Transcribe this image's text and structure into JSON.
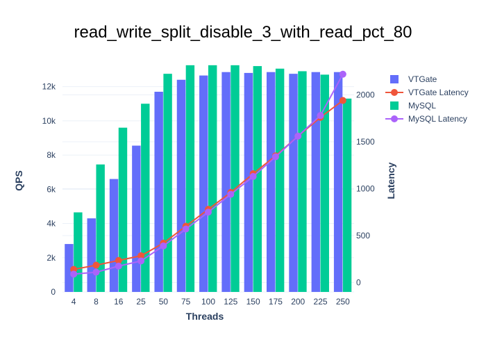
{
  "chart_data": {
    "type": "bar",
    "title": "read_write_split_disable_3_with_read_pct_80",
    "xlabel": "Threads",
    "ylabel": "QPS",
    "y2label": "Latency",
    "categories": [
      "4",
      "8",
      "16",
      "25",
      "50",
      "75",
      "100",
      "125",
      "150",
      "175",
      "200",
      "225",
      "250"
    ],
    "ylim": [
      0,
      13000
    ],
    "y_ticks": [
      0,
      2000,
      4000,
      6000,
      8000,
      10000,
      12000
    ],
    "y_tick_labels": [
      "0",
      "2k",
      "4k",
      "6k",
      "8k",
      "10k",
      "12k"
    ],
    "y2lim": [
      -100,
      2270
    ],
    "y2_ticks": [
      0,
      500,
      1000,
      1500,
      2000
    ],
    "y2_tick_labels": [
      "0",
      "500",
      "1000",
      "1500",
      "2000"
    ],
    "grid": true,
    "legend_position": "top-right",
    "series": [
      {
        "name": "VTGate",
        "kind": "bar",
        "axis": "y",
        "color": "#636efa",
        "values": [
          2800,
          4300,
          6600,
          8550,
          11700,
          12400,
          12650,
          12850,
          12800,
          12850,
          12750,
          12850,
          12850
        ]
      },
      {
        "name": "VTGate Latency",
        "kind": "line",
        "axis": "y2",
        "color": "#ef553b",
        "values": [
          140,
          185,
          235,
          285,
          420,
          600,
          780,
          960,
          1160,
          1350,
          1560,
          1760,
          1940
        ]
      },
      {
        "name": "MySQL",
        "kind": "bar",
        "axis": "y",
        "color": "#00cc96",
        "values": [
          4650,
          7450,
          9600,
          11000,
          12750,
          13250,
          13250,
          13250,
          13200,
          13050,
          12900,
          12700,
          11300
        ]
      },
      {
        "name": "MySQL Latency",
        "kind": "line",
        "axis": "y2",
        "color": "#ab63fa",
        "values": [
          90,
          110,
          175,
          230,
          390,
          570,
          750,
          940,
          1130,
          1340,
          1560,
          1780,
          2220
        ]
      }
    ]
  }
}
